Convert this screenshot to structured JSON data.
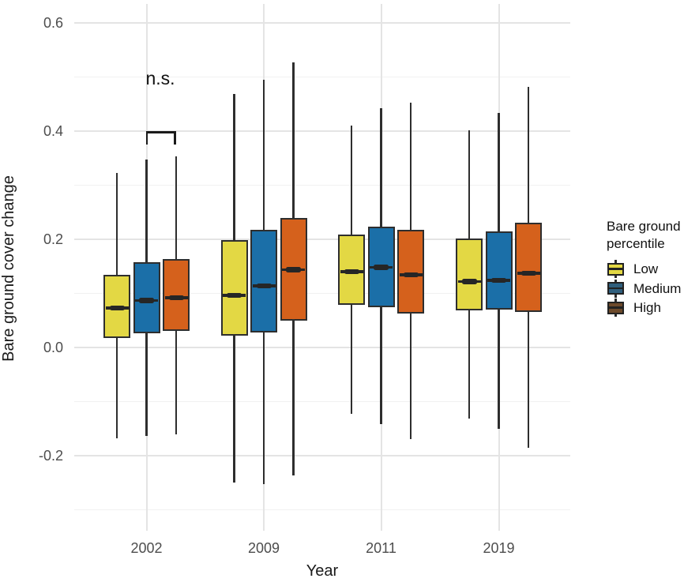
{
  "axes": {
    "x": {
      "title": "Year",
      "ticks": [
        "2002",
        "2009",
        "2011",
        "2019"
      ]
    },
    "y": {
      "title": "Bare ground cover change",
      "ticks": [
        "0.6",
        "0.4",
        "0.2",
        "0.0",
        "-0.2"
      ],
      "tick_values": [
        0.6,
        0.4,
        0.2,
        0.0,
        -0.2
      ],
      "minor_values": [
        0.5,
        0.3,
        0.1,
        -0.1,
        -0.3
      ]
    }
  },
  "legend": {
    "title_lines": [
      "Bare ground",
      "percentile"
    ],
    "entries": [
      {
        "label": "Low",
        "fill": "#e3d844",
        "key_fill": "#e3d844"
      },
      {
        "label": "Medium",
        "fill": "#1b6fa8",
        "key_fill": "#305f7d"
      },
      {
        "label": "High",
        "fill": "#d5611c",
        "key_fill": "#6d4a2b"
      }
    ]
  },
  "annotation": {
    "text": "n.s."
  },
  "colors": {
    "low": "#e3d844",
    "medium": "#1b6fa8",
    "high": "#d5611c",
    "box_border": "#2e2e2e",
    "grid_major": "#e4e4e4",
    "grid_minor": "#f1f1f1",
    "tick_text": "#4d4d4d"
  },
  "chart_data": {
    "type": "boxplot",
    "title": "",
    "xlabel": "Year",
    "ylabel": "Bare ground cover change",
    "categories": [
      "2002",
      "2009",
      "2011",
      "2019"
    ],
    "group_by": "Bare ground percentile",
    "ylim": [
      -0.34,
      0.635
    ],
    "y_ticks": [
      -0.2,
      0.0,
      0.2,
      0.4,
      0.6
    ],
    "grid": true,
    "legend_position": "right",
    "series": [
      {
        "name": "Low",
        "color": "#e3d844",
        "boxes": [
          {
            "category": "2002",
            "whisker_low": -0.168,
            "q1": 0.018,
            "median": 0.073,
            "q3": 0.135,
            "whisker_high": 0.323
          },
          {
            "category": "2009",
            "whisker_low": -0.249,
            "q1": 0.022,
            "median": 0.096,
            "q3": 0.198,
            "whisker_high": 0.468
          },
          {
            "category": "2011",
            "whisker_low": -0.123,
            "q1": 0.079,
            "median": 0.14,
            "q3": 0.209,
            "whisker_high": 0.41
          },
          {
            "category": "2019",
            "whisker_low": -0.131,
            "q1": 0.069,
            "median": 0.122,
            "q3": 0.202,
            "whisker_high": 0.402
          }
        ]
      },
      {
        "name": "Medium",
        "color": "#1b6fa8",
        "boxes": [
          {
            "category": "2002",
            "whisker_low": -0.163,
            "q1": 0.027,
            "median": 0.087,
            "q3": 0.157,
            "whisker_high": 0.348
          },
          {
            "category": "2009",
            "whisker_low": -0.252,
            "q1": 0.028,
            "median": 0.114,
            "q3": 0.217,
            "whisker_high": 0.495
          },
          {
            "category": "2011",
            "whisker_low": -0.142,
            "q1": 0.075,
            "median": 0.148,
            "q3": 0.223,
            "whisker_high": 0.443
          },
          {
            "category": "2019",
            "whisker_low": -0.15,
            "q1": 0.07,
            "median": 0.124,
            "q3": 0.215,
            "whisker_high": 0.434
          }
        ]
      },
      {
        "name": "High",
        "color": "#d5611c",
        "boxes": [
          {
            "category": "2002",
            "whisker_low": -0.161,
            "q1": 0.031,
            "median": 0.092,
            "q3": 0.163,
            "whisker_high": 0.354
          },
          {
            "category": "2009",
            "whisker_low": -0.237,
            "q1": 0.049,
            "median": 0.144,
            "q3": 0.239,
            "whisker_high": 0.527
          },
          {
            "category": "2011",
            "whisker_low": -0.17,
            "q1": 0.063,
            "median": 0.134,
            "q3": 0.218,
            "whisker_high": 0.452
          },
          {
            "category": "2019",
            "whisker_low": -0.185,
            "q1": 0.066,
            "median": 0.137,
            "q3": 0.231,
            "whisker_high": 0.482
          }
        ]
      }
    ],
    "annotations": [
      {
        "text": "n.s.",
        "category": "2002",
        "between": [
          "Medium",
          "High"
        ],
        "bracket_value": 0.4
      }
    ]
  }
}
